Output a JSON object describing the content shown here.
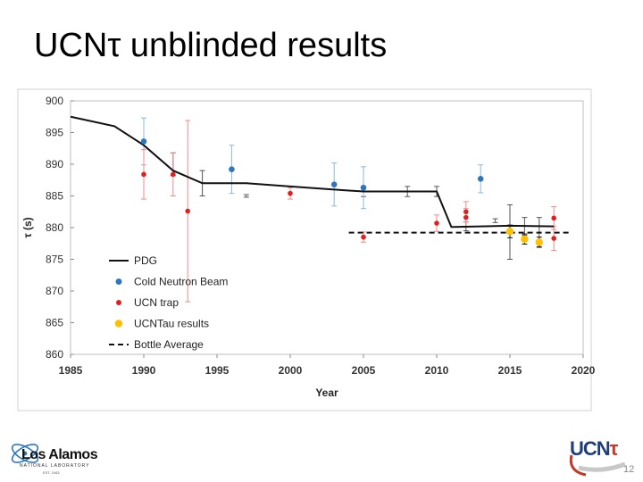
{
  "slide": {
    "title": "UCNτ unblinded results",
    "page_number": "12",
    "logo_left": {
      "name": "Los Alamos",
      "subtitle": "NATIONAL LABORATORY",
      "est": "EST. 1943"
    },
    "logo_right": {
      "name": "UCN",
      "tau": "τ"
    }
  },
  "chart_data": {
    "type": "scatter",
    "xlabel": "Year",
    "ylabel": "τ (s)",
    "xlim": [
      1985,
      2020
    ],
    "ylim": [
      860,
      900
    ],
    "xticks": [
      1985,
      1990,
      1995,
      2000,
      2005,
      2010,
      2015,
      2020
    ],
    "yticks": [
      860,
      865,
      870,
      875,
      880,
      885,
      890,
      895,
      900
    ],
    "legend": [
      "PDG",
      "Cold Neutron Beam",
      "UCN trap",
      "UCNTau results",
      "Bottle Average"
    ],
    "legend_position": "bottom-left",
    "colors": {
      "pdg": "#111111",
      "beam": "#2f77bd",
      "trap": "#e02020",
      "ucntau": "#ffc000",
      "bottle": "#111111",
      "beam_err": "#8ab8df",
      "trap_err": "#f08a8a"
    },
    "series": [
      {
        "name": "PDG",
        "style": "line",
        "points": [
          [
            1985,
            897.5
          ],
          [
            1988,
            896
          ],
          [
            1990,
            893
          ],
          [
            1992,
            889
          ],
          [
            1994,
            887
          ],
          [
            1997,
            887
          ],
          [
            2000,
            886.5
          ],
          [
            2003,
            886
          ],
          [
            2005,
            885.7
          ],
          [
            2010,
            885.7
          ],
          [
            2011,
            880.1
          ],
          [
            2013,
            880.2
          ],
          [
            2015,
            880.3
          ],
          [
            2018,
            880.2
          ]
        ],
        "error_bars": [
          {
            "x": 1992,
            "lo": 888.2,
            "hi": 891.8
          },
          {
            "x": 1994,
            "lo": 885,
            "hi": 889
          },
          {
            "x": 1997,
            "lo": 884.8,
            "hi": 885.2
          },
          {
            "x": 2005,
            "lo": 884.9,
            "hi": 886.5
          },
          {
            "x": 2008,
            "lo": 884.9,
            "hi": 886.5
          },
          {
            "x": 2010,
            "lo": 884.9,
            "hi": 886.5
          },
          {
            "x": 2012,
            "lo": 879.5,
            "hi": 880.9
          },
          {
            "x": 2014,
            "lo": 880.8,
            "hi": 881.4
          },
          {
            "x": 2015,
            "lo": 875,
            "hi": 883.6
          },
          {
            "x": 2016,
            "lo": 878.8,
            "hi": 881.6
          },
          {
            "x": 2017,
            "lo": 877,
            "hi": 881.6
          }
        ]
      },
      {
        "name": "Cold Neutron Beam",
        "style": "points",
        "points": [
          {
            "x": 1990,
            "y": 893.6,
            "lo": 889.9,
            "hi": 897.3
          },
          {
            "x": 1996,
            "y": 889.2,
            "lo": 885.4,
            "hi": 893
          },
          {
            "x": 2003,
            "y": 886.8,
            "lo": 883.4,
            "hi": 890.2
          },
          {
            "x": 2005,
            "y": 886.3,
            "lo": 883,
            "hi": 889.6
          },
          {
            "x": 2013,
            "y": 887.7,
            "lo": 885.5,
            "hi": 889.9
          }
        ]
      },
      {
        "name": "UCN trap",
        "style": "points",
        "points": [
          {
            "x": 1990,
            "y": 888.4,
            "lo": 884.5,
            "hi": 892.3
          },
          {
            "x": 1992,
            "y": 888.4,
            "lo": 885,
            "hi": 891.8
          },
          {
            "x": 1993,
            "y": 882.6,
            "lo": 868.3,
            "hi": 896.9
          },
          {
            "x": 2000,
            "y": 885.4,
            "lo": 884.5,
            "hi": 886.3
          },
          {
            "x": 2005,
            "y": 878.5,
            "lo": 877.7,
            "hi": 879.3
          },
          {
            "x": 2010,
            "y": 880.7,
            "lo": 879.4,
            "hi": 882
          },
          {
            "x": 2012,
            "y": 881.6,
            "lo": 880.2,
            "hi": 883
          },
          {
            "x": 2012,
            "y": 882.5,
            "lo": 880.9,
            "hi": 884.1
          },
          {
            "x": 2018,
            "y": 881.5,
            "lo": 879.7,
            "hi": 883.3
          },
          {
            "x": 2018,
            "y": 878.3,
            "lo": 876.4,
            "hi": 880.2
          }
        ]
      },
      {
        "name": "UCNTau results",
        "style": "points",
        "points": [
          {
            "x": 2015,
            "y": 879.4,
            "lo": 878.4,
            "hi": 880.4
          },
          {
            "x": 2016,
            "y": 878.2,
            "lo": 877.4,
            "hi": 879
          },
          {
            "x": 2017,
            "y": 877.7,
            "lo": 876.9,
            "hi": 878.5
          }
        ]
      },
      {
        "name": "Bottle Average",
        "style": "dashed",
        "points": [
          [
            2004,
            879.2
          ],
          [
            2019,
            879.2
          ]
        ]
      }
    ]
  }
}
